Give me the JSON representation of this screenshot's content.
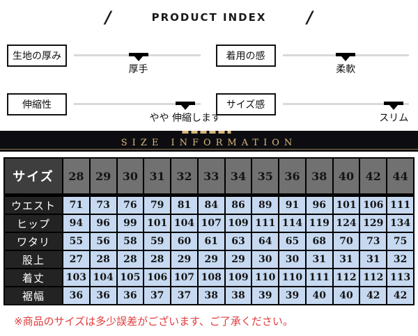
{
  "header": {
    "slash_left": "/",
    "title": "PRODUCT INDEX",
    "slash_right": "/"
  },
  "sliders": [
    {
      "label": "生地の厚み",
      "value_label": "厚手",
      "position_pct": 51
    },
    {
      "label": "着用の感",
      "value_label": "柔軟",
      "position_pct": 50
    },
    {
      "label": "伸縮性",
      "value_label": "やや 伸縮します",
      "position_pct": 88
    },
    {
      "label": "サイズ感",
      "value_label": "スリム",
      "position_pct": 88
    }
  ],
  "banner": {
    "title": "SIZE INFORMATION"
  },
  "size_table": {
    "header_label": "サイズ",
    "sizes": [
      "28",
      "29",
      "30",
      "31",
      "32",
      "33",
      "34",
      "35",
      "36",
      "38",
      "40",
      "42",
      "44"
    ],
    "rows": [
      {
        "label": "ウエスト",
        "values": [
          "71",
          "73",
          "76",
          "79",
          "81",
          "84",
          "86",
          "89",
          "91",
          "96",
          "101",
          "106",
          "111"
        ]
      },
      {
        "label": "ヒップ",
        "values": [
          "94",
          "96",
          "99",
          "101",
          "104",
          "107",
          "109",
          "111",
          "114",
          "119",
          "124",
          "129",
          "134"
        ]
      },
      {
        "label": "ワタリ",
        "values": [
          "55",
          "56",
          "58",
          "59",
          "60",
          "61",
          "63",
          "64",
          "65",
          "68",
          "70",
          "73",
          "75"
        ]
      },
      {
        "label": "股上",
        "values": [
          "27",
          "28",
          "28",
          "28",
          "29",
          "29",
          "29",
          "30",
          "30",
          "31",
          "31",
          "31",
          "32"
        ]
      },
      {
        "label": "着丈",
        "values": [
          "103",
          "104",
          "105",
          "106",
          "107",
          "108",
          "109",
          "110",
          "110",
          "111",
          "112",
          "112",
          "113"
        ]
      },
      {
        "label": "裾幅",
        "values": [
          "36",
          "36",
          "36",
          "37",
          "37",
          "38",
          "38",
          "39",
          "39",
          "40",
          "40",
          "42",
          "42"
        ]
      }
    ]
  },
  "note": {
    "text": "※商品のサイズは多少誤差がございます、ご了承ください。"
  },
  "colors": {
    "banner_bg": "#0d0d11",
    "banner_gold": "#d9b87c",
    "table_header_label_bg": "#3e3e3e",
    "table_size_header_bg": "#717171",
    "table_row_label_bg": "#232323",
    "table_data_cell_bg": "#c6d9f1",
    "table_border": "#000000",
    "slider_track": "#d9d9d9",
    "slider_marker": "#000000",
    "note_red": "#e23b3b"
  }
}
